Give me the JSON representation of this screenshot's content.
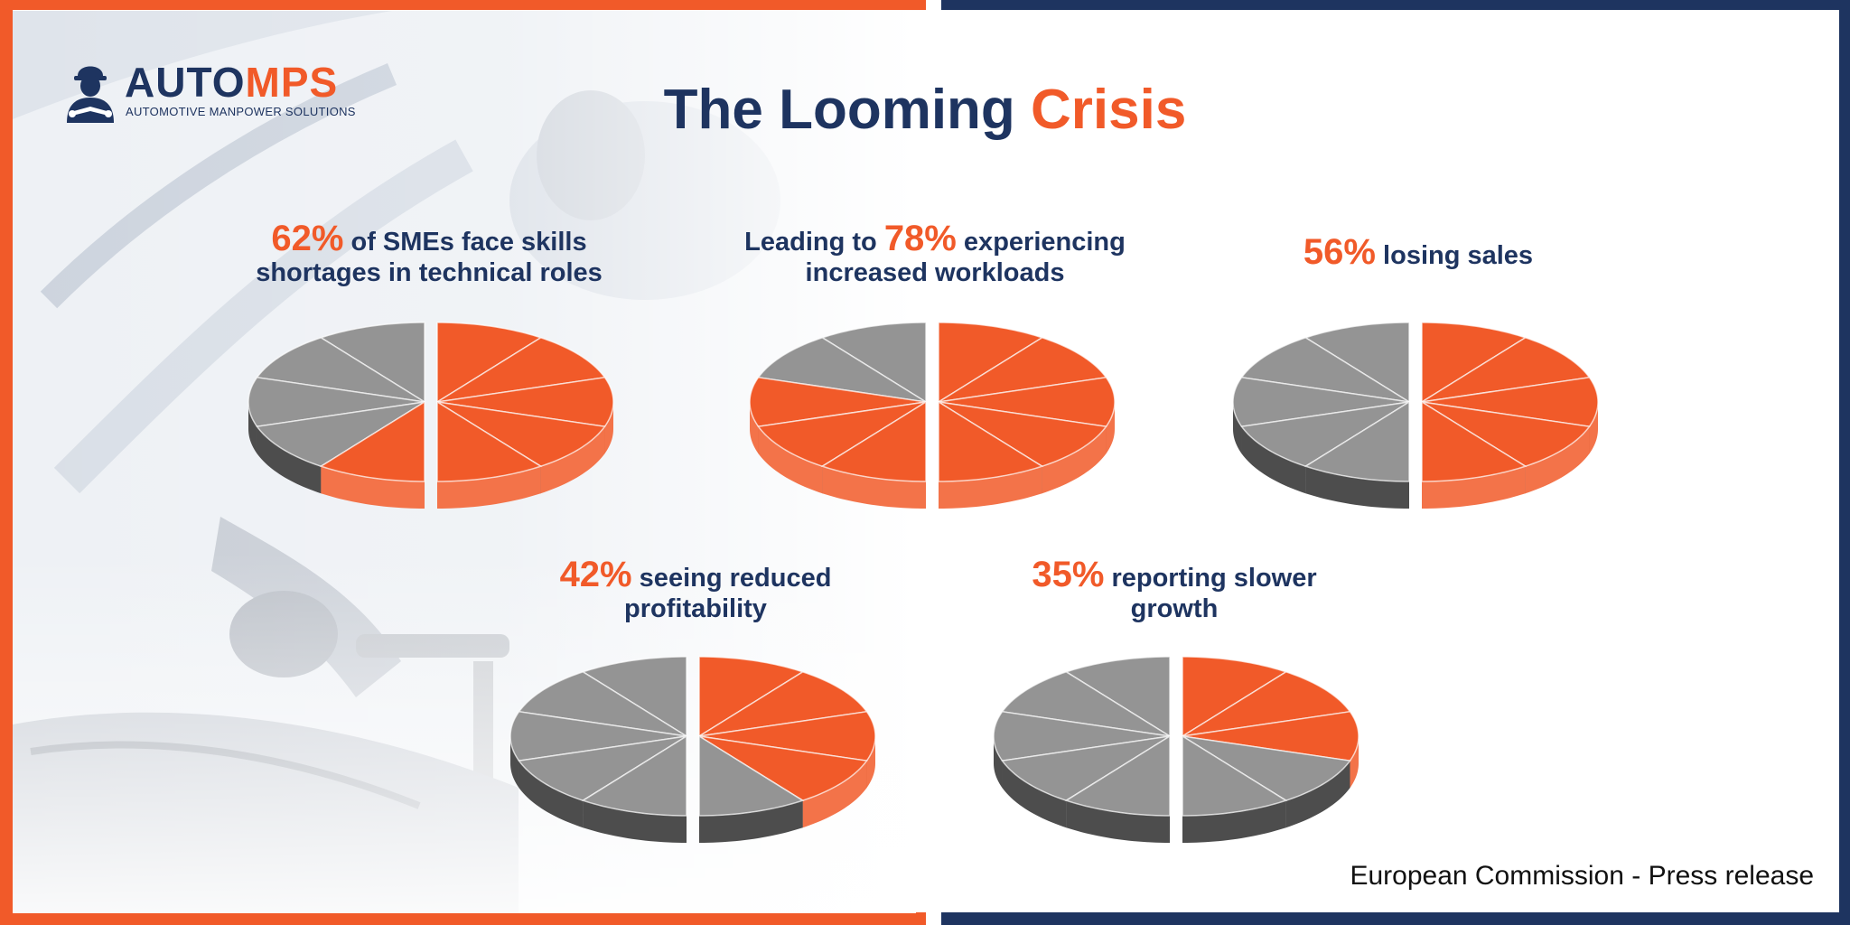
{
  "brand": {
    "word_left": "AUTO",
    "word_right": "MPS",
    "tagline": "AUTOMOTIVE MANPOWER SOLUTIONS",
    "navy": "#1e3460",
    "orange": "#f15a29"
  },
  "headline": {
    "part1": "The Looming",
    "part2": "Crisis"
  },
  "stats": [
    {
      "prefix": "",
      "value_label": "62%",
      "suffix": " of SMEs face skills",
      "line2": "shortages in technical roles"
    },
    {
      "prefix": "Leading to ",
      "value_label": "78%",
      "suffix": " experiencing",
      "line2": "increased workloads"
    },
    {
      "prefix": "",
      "value_label": "56%",
      "suffix": " losing sales",
      "line2": ""
    },
    {
      "prefix": "",
      "value_label": "42%",
      "suffix": " seeing reduced",
      "line2": "profitability"
    },
    {
      "prefix": "",
      "value_label": "35%",
      "suffix": " reporting slower",
      "line2": "growth"
    }
  ],
  "source": "European Commission - Press release",
  "chart_data": {
    "type": "pie",
    "title": "The Looming Crisis",
    "segments_per_pie": 10,
    "colors": {
      "highlight": "#f15a29",
      "rest": "#949494"
    },
    "series": [
      {
        "name": "SMEs face skills shortages in technical roles",
        "value": 62,
        "highlighted_segments": 6
      },
      {
        "name": "Experiencing increased workloads",
        "value": 78,
        "highlighted_segments": 8
      },
      {
        "name": "Losing sales",
        "value": 56,
        "highlighted_segments": 5
      },
      {
        "name": "Seeing reduced profitability",
        "value": 42,
        "highlighted_segments": 4
      },
      {
        "name": "Reporting slower growth",
        "value": 35,
        "highlighted_segments": 3
      }
    ]
  }
}
